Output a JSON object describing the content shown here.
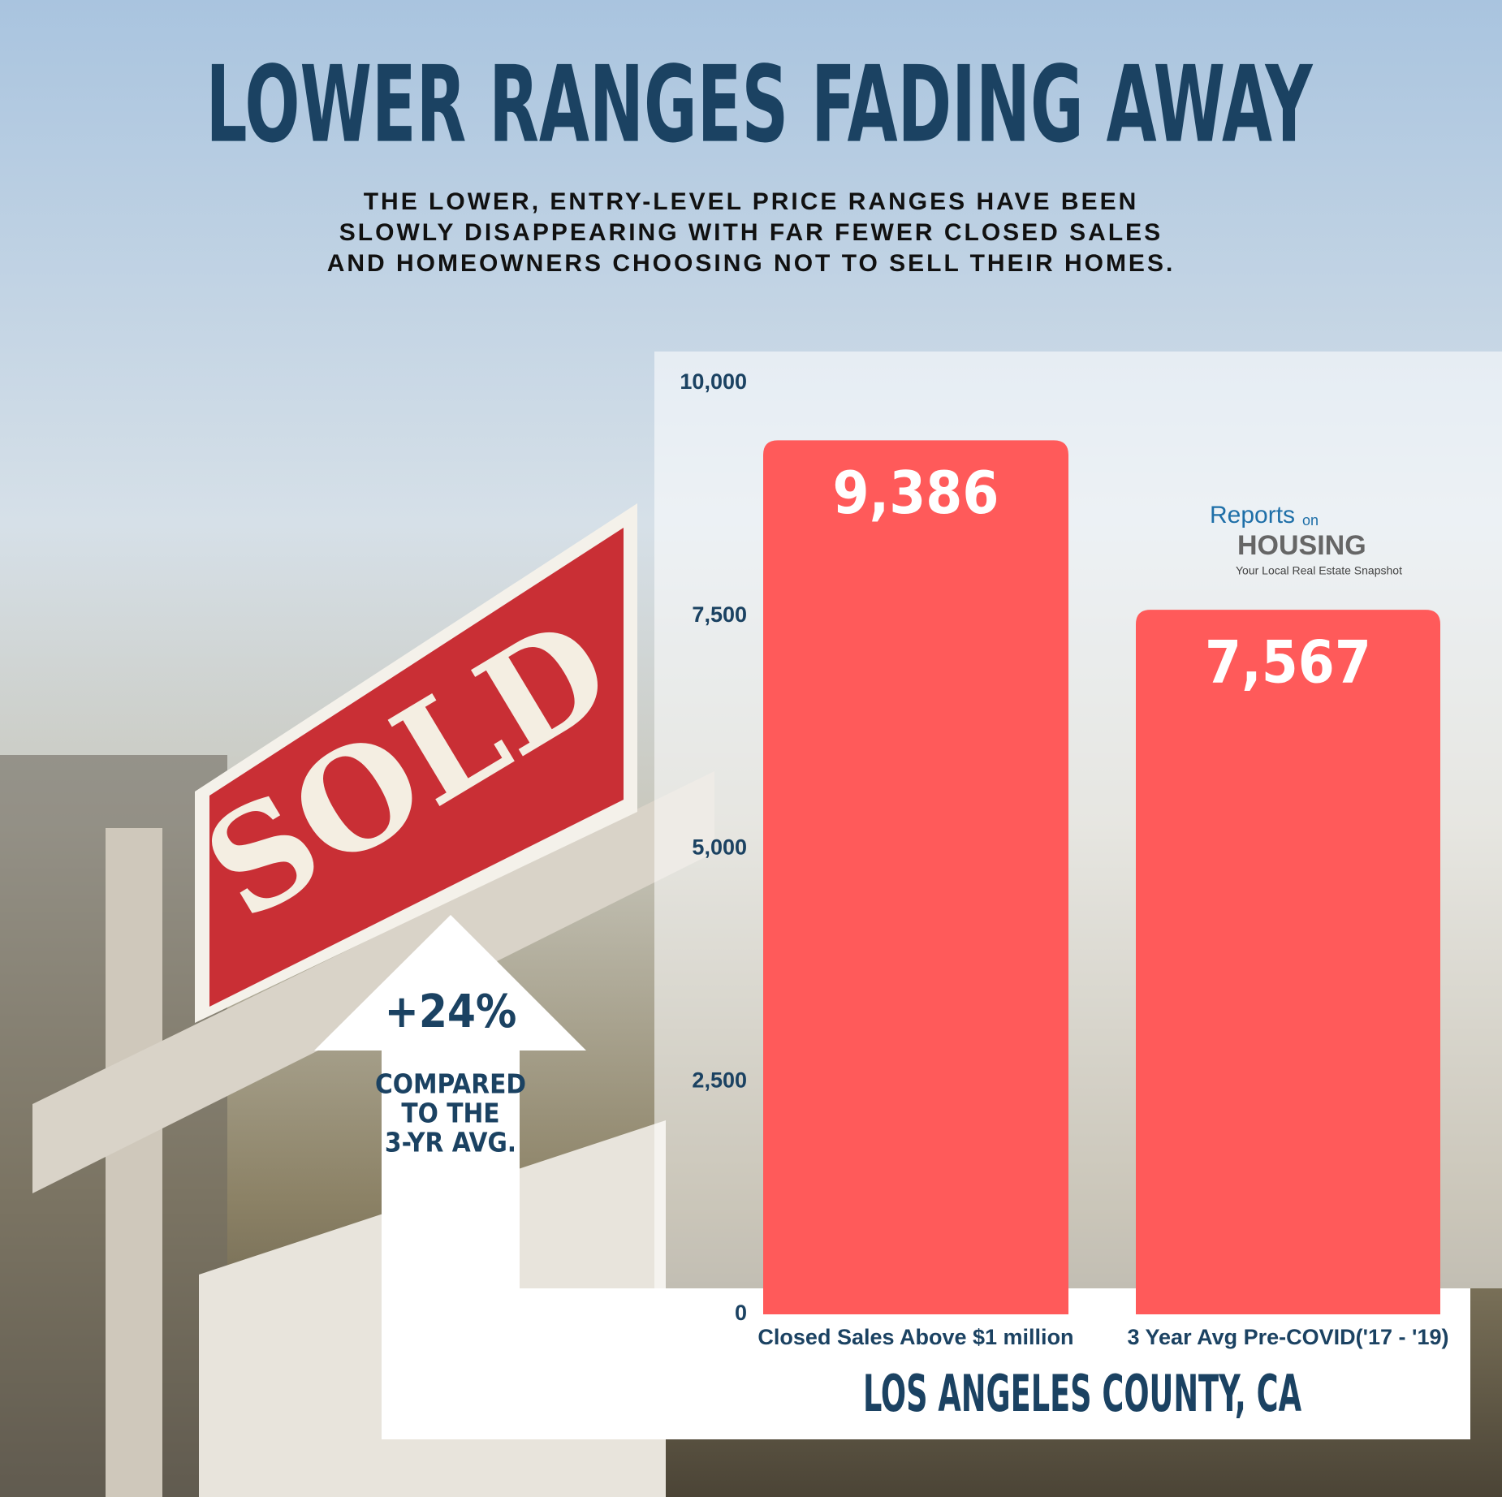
{
  "chart_data": {
    "type": "bar",
    "title": "LOWER RANGES FADING AWAY",
    "subtitle": [
      "THE LOWER, ENTRY-LEVEL PRICE RANGES HAVE BEEN",
      "SLOWLY DISAPPEARING WITH FAR FEWER CLOSED SALES",
      "AND HOMEOWNERS CHOOSING NOT TO SELL THEIR HOMES."
    ],
    "categories": [
      "Closed Sales Above $1 million",
      "3 Year Avg Pre-COVID('17 - '19)"
    ],
    "values": [
      9386,
      7567
    ],
    "value_labels": [
      "9,386",
      "7,567"
    ],
    "color": "#ff5a5a",
    "ylim": [
      0,
      10000
    ],
    "yticks": [
      0,
      {
        "value": 2500,
        "label": "2,500"
      },
      {
        "value": 5000,
        "label": "5,000"
      },
      {
        "value": 7500,
        "label": "7,500"
      },
      {
        "value": 10000,
        "label": "10,000"
      }
    ],
    "xlabel": "LOS ANGELES COUNTY, CA",
    "annotation": {
      "text": "+24%",
      "subtext": [
        "COMPARED",
        "TO THE",
        "3-YR AVG."
      ]
    },
    "logo": {
      "name": [
        "Reports",
        "on",
        "HOUSING"
      ],
      "tagline": "Your Local Real Estate Snapshot"
    },
    "background_sign": "SOLD"
  }
}
